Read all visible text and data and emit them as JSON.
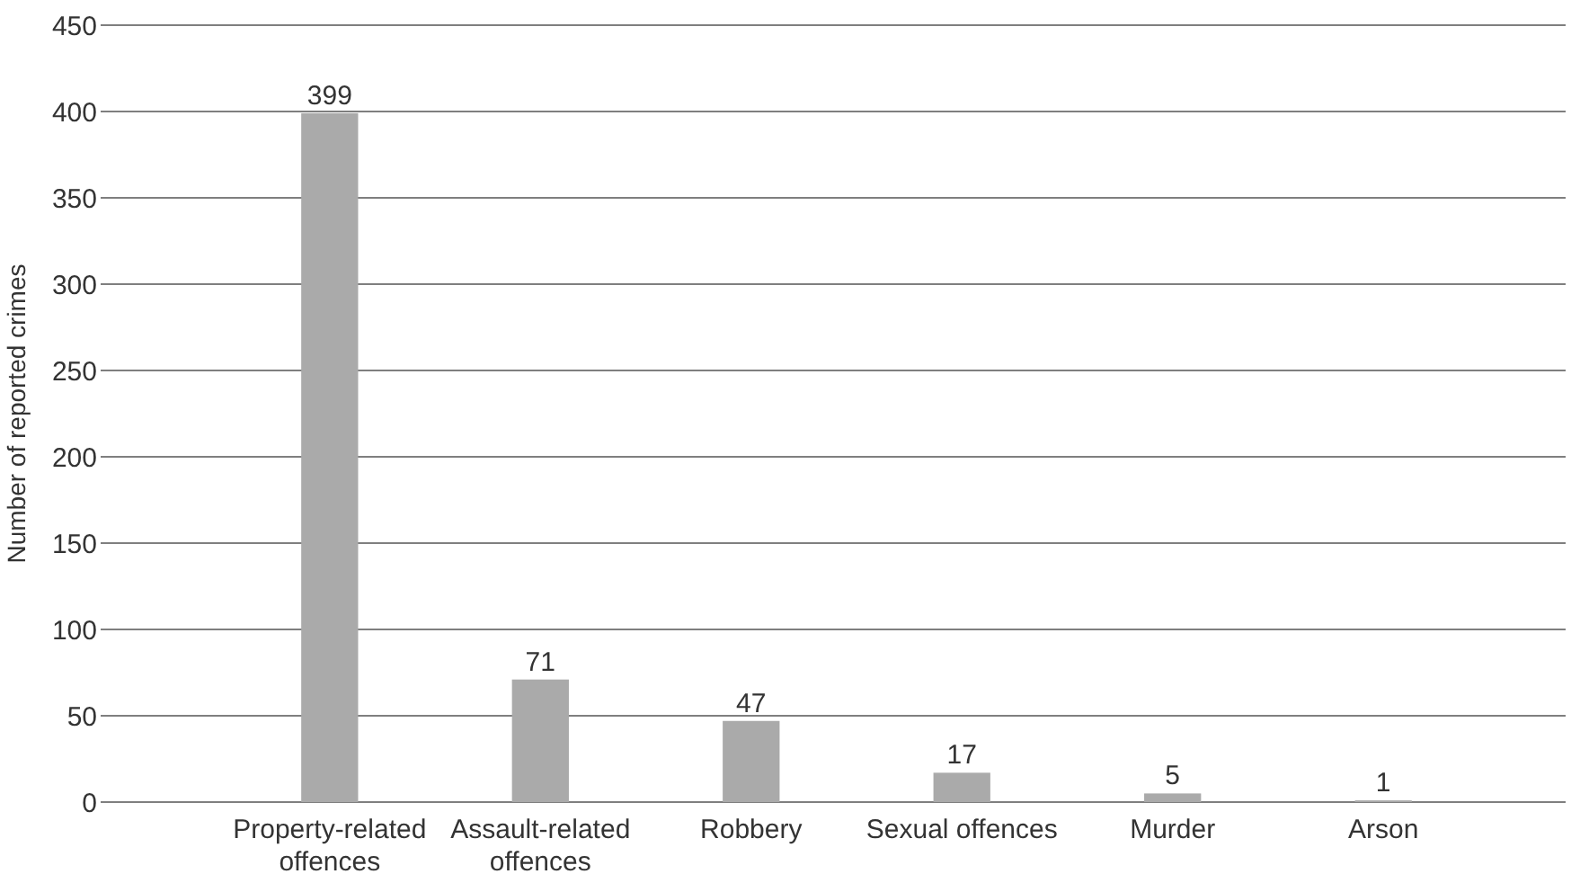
{
  "chart_data": {
    "type": "bar",
    "ylabel": "Number of reported crimes",
    "categories": [
      "Property-related offences",
      "Assault-related offences",
      "Robbery",
      "Sexual offences",
      "Murder",
      "Arson"
    ],
    "values": [
      399,
      71,
      47,
      17,
      5,
      1
    ],
    "color": "#aaaaaa",
    "data_labels": true,
    "ylim": [
      0,
      450
    ],
    "yticks": [
      0,
      50,
      100,
      150,
      200,
      250,
      300,
      350,
      400,
      450
    ],
    "grid": "y"
  }
}
